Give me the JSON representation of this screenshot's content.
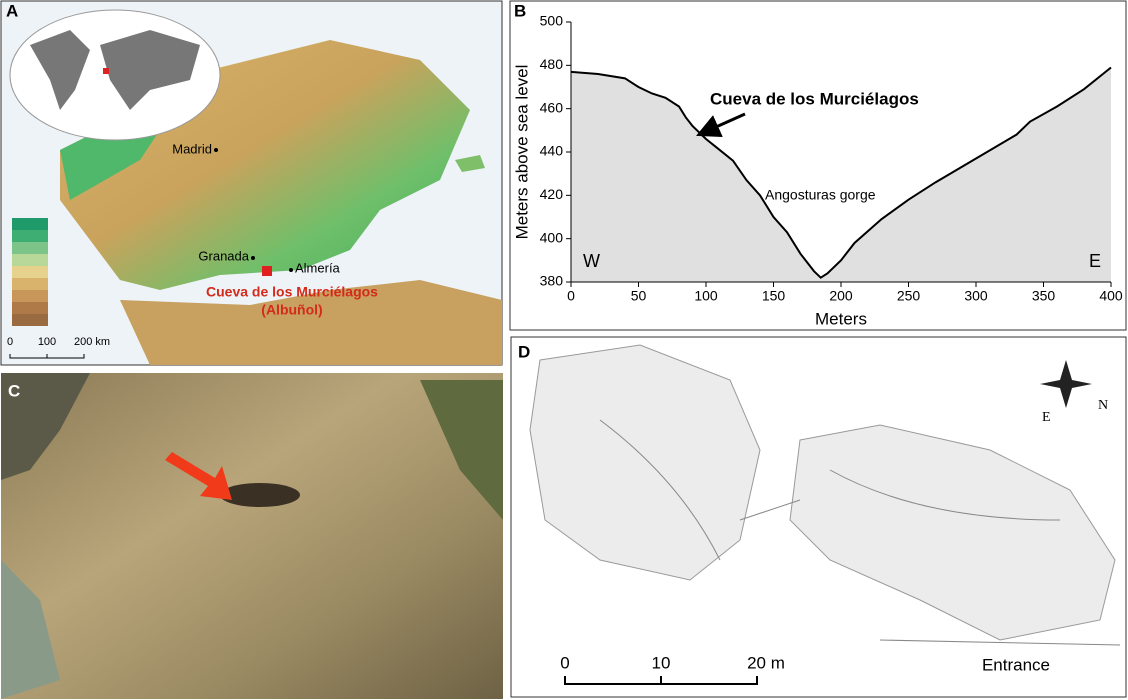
{
  "panel_a": {
    "label": "A",
    "cities": [
      "Madrid",
      "Granada",
      "Almería"
    ],
    "site_name": "Cueva de los Murciélagos",
    "site_place": "(Albuñol)",
    "scale_bar": [
      "0",
      "100",
      "200 km"
    ]
  },
  "chart_data": {
    "type": "line",
    "label": "B",
    "x_label": "Meters",
    "y_label": "Meters above sea level",
    "x": [
      0,
      20,
      40,
      50,
      60,
      70,
      80,
      85,
      90,
      100,
      110,
      120,
      130,
      140,
      150,
      160,
      170,
      180,
      185,
      190,
      200,
      210,
      230,
      250,
      270,
      300,
      330,
      340,
      360,
      380,
      400
    ],
    "values": [
      477,
      476,
      474,
      470,
      467,
      465,
      461,
      456,
      452,
      446,
      441,
      436,
      427,
      420,
      410,
      403,
      393,
      385,
      382,
      384,
      390,
      398,
      409,
      418,
      426,
      437,
      448,
      454,
      461,
      469,
      479
    ],
    "color": "#000000",
    "fill": "#e0e0e0",
    "xlim": [
      0,
      400
    ],
    "ylim": [
      380,
      500
    ],
    "xticks": [
      0,
      50,
      100,
      150,
      200,
      250,
      300,
      350,
      400
    ],
    "yticks": [
      380,
      400,
      420,
      440,
      460,
      480,
      500
    ],
    "annotation_cave": "Cueva de los Murciélagos",
    "annotation_gorge": "Angosturas gorge",
    "west": "W",
    "east": "E"
  },
  "panel_c": {
    "label": "C"
  },
  "panel_d": {
    "label": "D",
    "scale_bar": [
      "0",
      "10",
      "20 m"
    ],
    "entrance": "Entrance",
    "compass": [
      "E",
      "N"
    ]
  }
}
